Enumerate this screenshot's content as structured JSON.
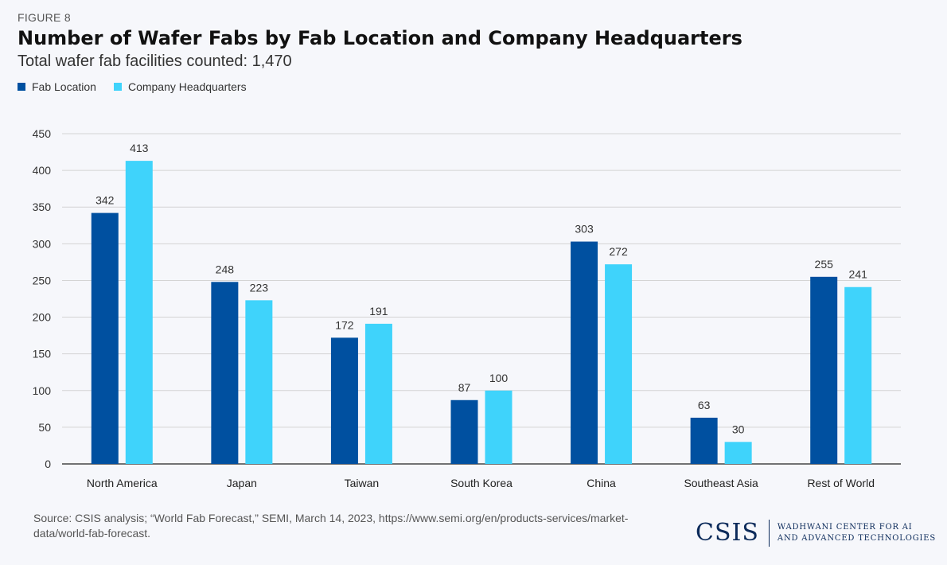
{
  "figure_label": "FIGURE 8",
  "source_text": "Source: CSIS analysis; “World Fab Forecast,” SEMI, March 14, 2023, https://www.semi.org/en/products-services/market-data/world-fab-forecast.",
  "logo": {
    "word": "CSIS",
    "line1": "WADHWANI CENTER FOR AI",
    "line2": "AND ADVANCED TECHNOLOGIES"
  },
  "colors": {
    "fab_location": "#0050a0",
    "company_hq": "#3fd3fb",
    "grid": "#d4d4d4",
    "axis": "#222222"
  },
  "chart_data": {
    "type": "bar",
    "title": "Number of Wafer Fabs by Fab Location and Company Headquarters",
    "subtitle": "Total wafer fab facilities counted: 1,470",
    "categories": [
      "North America",
      "Japan",
      "Taiwan",
      "South Korea",
      "China",
      "Southeast Asia",
      "Rest of World"
    ],
    "series": [
      {
        "name": "Fab Location",
        "values": [
          342,
          248,
          172,
          87,
          303,
          63,
          255
        ]
      },
      {
        "name": "Company Headquarters",
        "values": [
          413,
          223,
          191,
          100,
          272,
          30,
          241
        ]
      }
    ],
    "yticks": [
      "0",
      "50",
      "100",
      "150",
      "200",
      "250",
      "300",
      "350",
      "400",
      "450"
    ],
    "ylim": [
      0,
      450
    ],
    "grid": true,
    "legend_position": "top-left",
    "xlabel": "",
    "ylabel": ""
  }
}
